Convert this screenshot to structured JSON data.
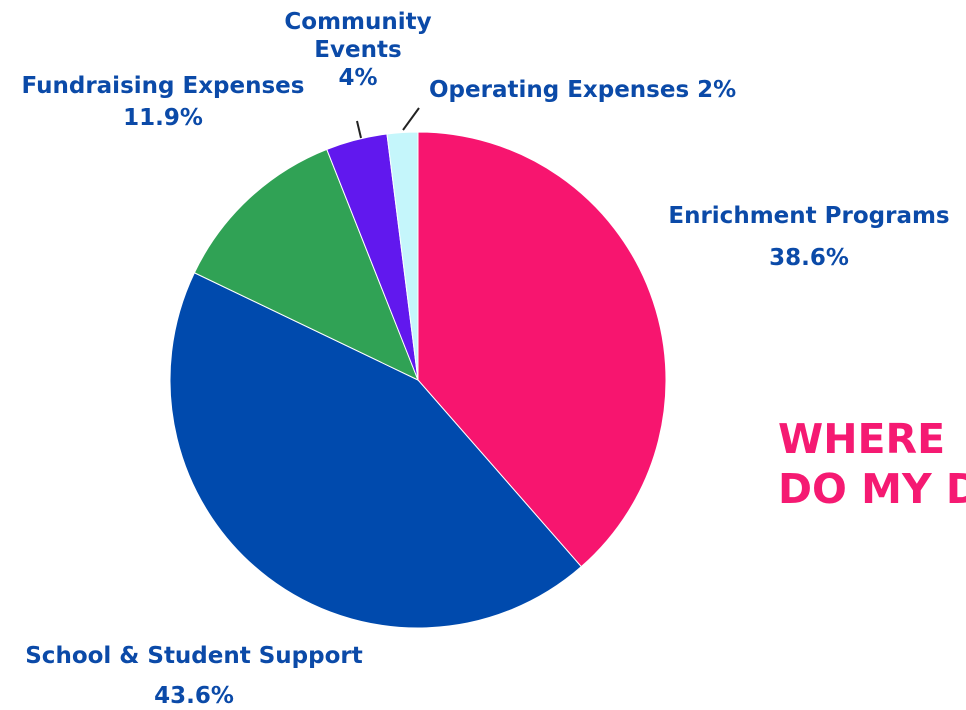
{
  "colors": {
    "label_text": "#0b4aa8",
    "headline_text": "#f51a72",
    "slice_outline": "#ffffff"
  },
  "headline": {
    "line1": "WHERE",
    "line2": "DO MY D"
  },
  "labels": {
    "enrichment": {
      "name": "Enrichment Programs",
      "pct": "38.6%"
    },
    "school": {
      "name": "School & Student Support",
      "pct": "43.6%"
    },
    "fundraising": {
      "name": "Fundraising Expenses",
      "pct": "11.9%"
    },
    "community": {
      "name_line1": "Community",
      "name_line2": "Events",
      "pct": "4%"
    },
    "operating": {
      "name": "Operating Expenses 2%"
    }
  },
  "chart_data": {
    "type": "pie",
    "title": "",
    "start_angle": "top",
    "direction": "clockwise",
    "slices": [
      {
        "label": "Enrichment Programs",
        "value": 38.6,
        "color": "#f7156f"
      },
      {
        "label": "School & Student Support",
        "value": 43.6,
        "color": "#004aad"
      },
      {
        "label": "Fundraising Expenses",
        "value": 11.9,
        "color": "#30a255"
      },
      {
        "label": "Community Events",
        "value": 4.0,
        "color": "#6118ee"
      },
      {
        "label": "Operating Expenses",
        "value": 2.0,
        "color": "#c5f6fb"
      }
    ]
  }
}
